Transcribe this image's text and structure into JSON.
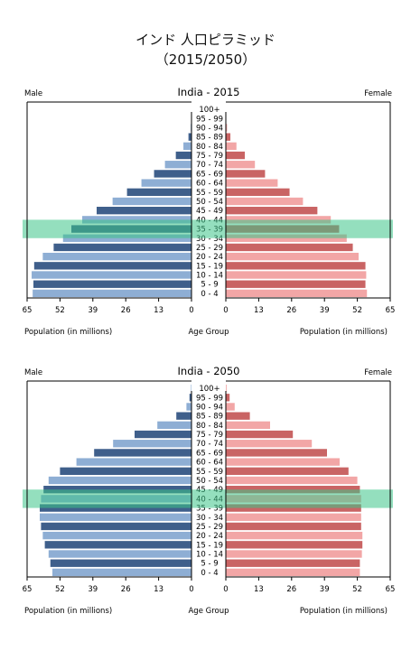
{
  "title_line1": "インド 人口ピラミッド",
  "title_line2": "（2015/2050）",
  "chart_data": [
    {
      "type": "bar",
      "title": "India - 2015",
      "left_label": "Male",
      "right_label": "Female",
      "xlabel_left": "Population (in millions)",
      "xlabel_center": "Age Group",
      "xlabel_right": "Population (in millions)",
      "xlim": [
        0,
        65
      ],
      "ticks": [
        65,
        52,
        39,
        26,
        13,
        0
      ],
      "highlight_group": "35 - 39",
      "categories": [
        "100+",
        "95 - 99",
        "90 - 94",
        "85 - 89",
        "80 - 84",
        "75 - 79",
        "70 - 74",
        "65 - 69",
        "60 - 64",
        "55 - 59",
        "50 - 54",
        "45 - 49",
        "40 - 44",
        "35 - 39",
        "30 - 34",
        "25 - 29",
        "20 - 24",
        "15 - 19",
        "10 - 14",
        "5 - 9",
        "0 - 4"
      ],
      "series": [
        {
          "name": "Male",
          "values": [
            0,
            0.1,
            0.3,
            1.2,
            3.2,
            6.2,
            10.5,
            14.8,
            19.8,
            25.5,
            31.2,
            37.5,
            43.2,
            47.5,
            50.8,
            54.5,
            58.8,
            62.2,
            63.2,
            62.5,
            62.8
          ]
        },
        {
          "name": "Female",
          "values": [
            0,
            0.1,
            0.5,
            1.8,
            4.2,
            7.5,
            11.5,
            15.5,
            20.5,
            25.2,
            30.5,
            36.2,
            41.5,
            44.8,
            47.8,
            50.2,
            52.5,
            55.2,
            55.5,
            55.2,
            55.8
          ]
        }
      ],
      "colors": {
        "male": [
          "#8eaed4",
          "#3f5f8b"
        ],
        "female": [
          "#f2a6a6",
          "#c96464"
        ],
        "highlight": "#3cc489"
      }
    },
    {
      "type": "bar",
      "title": "India - 2050",
      "left_label": "Male",
      "right_label": "Female",
      "xlabel_left": "Population (in millions)",
      "xlabel_center": "Age Group",
      "xlabel_right": "Population (in millions)",
      "xlim": [
        0,
        65
      ],
      "ticks": [
        65,
        52,
        39,
        26,
        13,
        0
      ],
      "highlight_group": "40 - 44",
      "categories": [
        "100+",
        "95 - 99",
        "90 - 94",
        "85 - 89",
        "80 - 84",
        "75 - 79",
        "70 - 74",
        "65 - 69",
        "60 - 64",
        "55 - 59",
        "50 - 54",
        "45 - 49",
        "40 - 44",
        "35 - 39",
        "30 - 34",
        "25 - 29",
        "20 - 24",
        "15 - 19",
        "10 - 14",
        "5 - 9",
        "0 - 4"
      ],
      "series": [
        {
          "name": "Male",
          "values": [
            0.2,
            0.8,
            2.0,
            6.0,
            13.5,
            22.5,
            31.0,
            38.5,
            45.5,
            52.0,
            56.5,
            58.5,
            59.5,
            60.0,
            60.0,
            59.5,
            58.8,
            58.0,
            56.5,
            55.8,
            55.0
          ]
        },
        {
          "name": "Female",
          "values": [
            0.3,
            1.5,
            3.5,
            9.5,
            17.5,
            26.5,
            34.0,
            40.0,
            45.0,
            48.5,
            52.0,
            53.0,
            53.5,
            53.5,
            53.5,
            53.5,
            54.0,
            54.0,
            53.8,
            53.0,
            53.0
          ]
        }
      ],
      "colors": {
        "male": [
          "#8eaed4",
          "#3f5f8b"
        ],
        "female": [
          "#f2a6a6",
          "#c96464"
        ],
        "highlight": "#3cc489"
      }
    }
  ]
}
